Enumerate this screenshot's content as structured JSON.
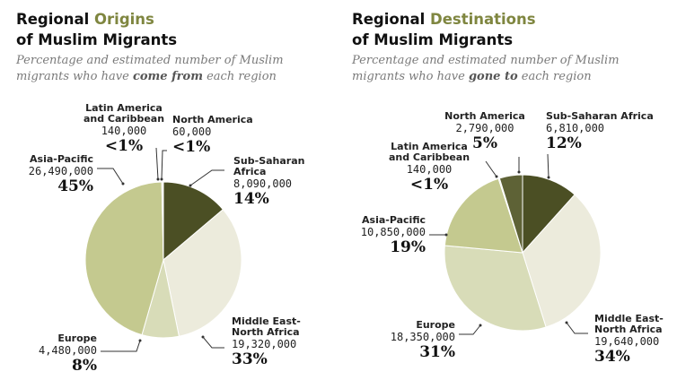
{
  "chart_data": [
    {
      "type": "pie",
      "title": [
        "Regional",
        "Origins",
        "of Muslim Migrants"
      ],
      "subtitle": [
        "Percentage and estimated number of Muslim migrants who have",
        "come from",
        "each region"
      ],
      "categories": [
        "Sub-Saharan\nAfrica",
        "Middle East-\nNorth Africa",
        "Europe",
        "Asia-Pacific",
        "Latin America\nand Caribbean",
        "North America"
      ],
      "values": [
        8090000,
        19320000,
        4480000,
        26490000,
        140000,
        60000
      ],
      "value_labels": [
        "8,090,000",
        "19,320,000",
        "4,480,000",
        "26,490,000",
        "140,000",
        "60,000"
      ],
      "share_labels": [
        "14%",
        "33%",
        "8%",
        "45%",
        "<1%",
        "<1%"
      ],
      "colors": [
        "#4b4f24",
        "#ecebdc",
        "#d8dcb8",
        "#c4c98f",
        "#e4e6c8",
        "#d8dcb8"
      ]
    },
    {
      "type": "pie",
      "title": [
        "Regional",
        "Destinations",
        "of Muslim Migrants"
      ],
      "subtitle": [
        "Percentage and estimated number of Muslim migrants who have",
        "gone to",
        "each region"
      ],
      "categories": [
        "Sub-Saharan Africa",
        "Middle East-\nNorth Africa",
        "Europe",
        "Asia-Pacific",
        "Latin America\nand Caribbean",
        "North America"
      ],
      "values": [
        6810000,
        19640000,
        18350000,
        10850000,
        140000,
        2790000
      ],
      "value_labels": [
        "6,810,000",
        "19,640,000",
        "18,350,000",
        "10,850,000",
        "140,000",
        "2,790,000"
      ],
      "share_labels": [
        "12%",
        "34%",
        "31%",
        "19%",
        "<1%",
        "5%"
      ],
      "colors": [
        "#4b4f24",
        "#ecebdc",
        "#d8dcb8",
        "#c4c98f",
        "#e4e6c8",
        "#5e6236"
      ]
    }
  ]
}
